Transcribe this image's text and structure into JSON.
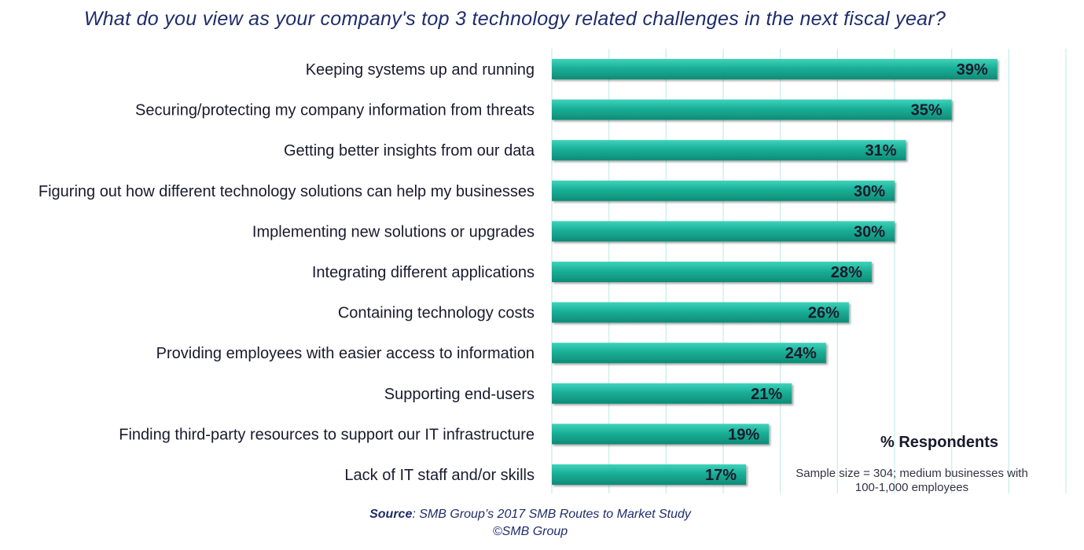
{
  "chart_data": {
    "type": "bar",
    "orientation": "horizontal",
    "title": "What do you view as your company's top 3 technology related challenges in the next fiscal year?",
    "categories": [
      "Keeping systems up and running",
      "Securing/protecting my company information from threats",
      "Getting better insights from our data",
      "Figuring out how different technology solutions can help my businesses",
      "Implementing new solutions or upgrades",
      "Integrating different applications",
      "Containing technology costs",
      "Providing employees with easier access to information",
      "Supporting end-users",
      "Finding third-party resources to support our IT infrastructure",
      "Lack of IT staff and/or skills"
    ],
    "values": [
      39,
      35,
      31,
      30,
      30,
      28,
      26,
      24,
      21,
      19,
      17
    ],
    "value_labels": [
      "39%",
      "35%",
      "31%",
      "30%",
      "30%",
      "28%",
      "26%",
      "24%",
      "21%",
      "19%",
      "17%"
    ],
    "xlim": [
      0,
      45
    ],
    "grid": true,
    "bar_color": "#1aaf97",
    "value_axis_label": "% Respondents",
    "note": "Sample size = 304; medium businesses with 100-1,000 employees"
  },
  "footer": {
    "source_prefix": "Source",
    "source_text": ": SMB Group’s 2017 SMB Routes to Market Study",
    "copyright": "©SMB Group"
  }
}
